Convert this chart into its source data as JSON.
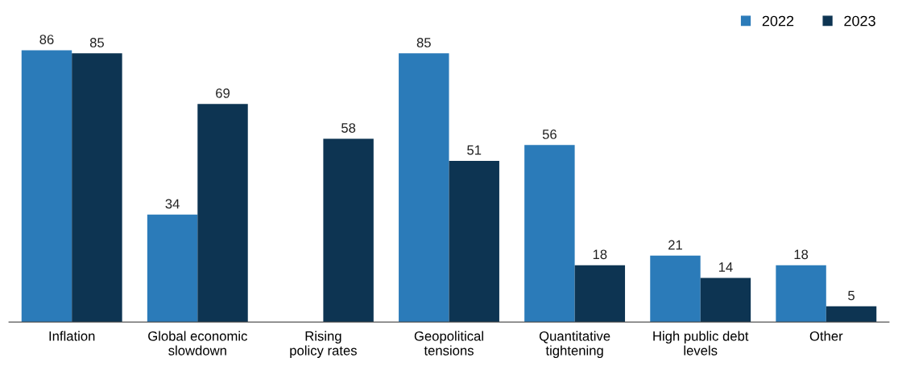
{
  "chart_data": {
    "type": "bar",
    "categories": [
      "Inflation",
      "Global economic\nslowdown",
      "Rising\npolicy rates",
      "Geopolitical\ntensions",
      "Quantitative\ntightening",
      "High public debt\nlevels",
      "Other"
    ],
    "series": [
      {
        "name": "2022",
        "color": "#2b7bb9",
        "values": [
          86,
          34,
          null,
          85,
          56,
          21,
          18
        ]
      },
      {
        "name": "2023",
        "color": "#0d3452",
        "values": [
          85,
          69,
          58,
          51,
          18,
          14,
          5
        ]
      }
    ],
    "data_labels": true,
    "legend": "top right",
    "tick_labels": "x",
    "grid": false
  }
}
